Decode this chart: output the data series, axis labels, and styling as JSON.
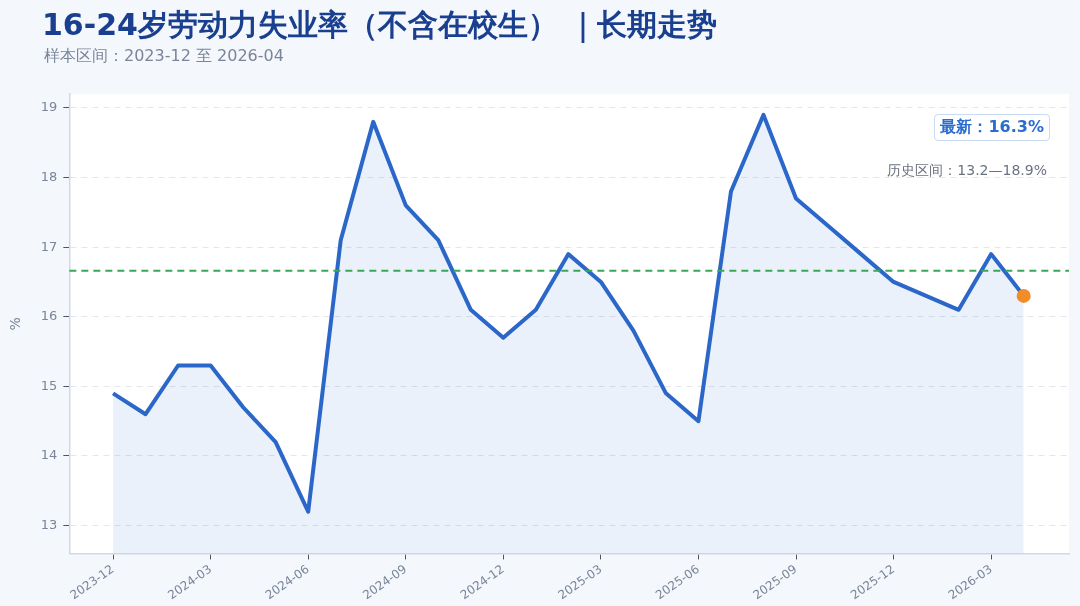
{
  "chart_data": {
    "type": "area",
    "title": "16-24岁劳动力失业率（不含在校生） ｜长期走势",
    "subtitle": "样本区间：2023-12 至 2026-04",
    "ylabel": "%",
    "x": [
      "2023-12",
      "2024-01",
      "2024-02",
      "2024-03",
      "2024-04",
      "2024-05",
      "2024-06",
      "2024-07",
      "2024-08",
      "2024-09",
      "2024-10",
      "2024-11",
      "2024-12",
      "2025-01",
      "2025-02",
      "2025-03",
      "2025-04",
      "2025-05",
      "2025-06",
      "2025-07",
      "2025-08",
      "2025-09",
      "2025-10",
      "2025-11",
      "2025-12",
      "2026-01",
      "2026-02",
      "2026-03",
      "2026-04"
    ],
    "series": [
      {
        "color": "#2a67c9",
        "marker": "none",
        "values": [
          14.9,
          14.6,
          15.3,
          15.3,
          14.7,
          14.2,
          13.2,
          17.1,
          18.8,
          17.6,
          17.1,
          16.1,
          15.7,
          16.1,
          16.9,
          16.5,
          15.8,
          14.9,
          14.5,
          17.8,
          18.9,
          17.7,
          17.3,
          16.9,
          16.5,
          16.3,
          16.1,
          16.9,
          16.3
        ]
      },
      {
        "type": "scatter",
        "color": "#f28c28",
        "marker": "circle",
        "x": [
          "2026-04"
        ],
        "values": [
          16.3
        ]
      }
    ],
    "xlim": [
      "2023-10-21",
      "2026-05-13"
    ],
    "xticks": [
      "2023-12",
      "2024-03",
      "2024-06",
      "2024-09",
      "2024-12",
      "2025-03",
      "2025-06",
      "2025-09",
      "2025-12",
      "2026-03"
    ],
    "ylim": [
      12.6,
      19.2
    ],
    "yticks": [
      13,
      14,
      15,
      16,
      17,
      18,
      19
    ],
    "grid": "y",
    "ref_lines": [
      {
        "axis": "y",
        "value": 16.66,
        "color": "#3aa757",
        "line_style": "dashed"
      }
    ],
    "annotations": [
      "最新：16.3%",
      "历史区间：13.2—18.9%"
    ]
  }
}
